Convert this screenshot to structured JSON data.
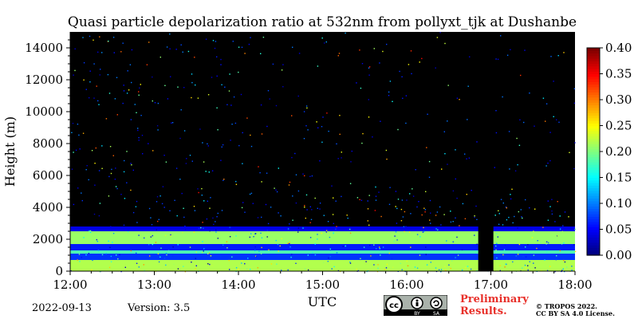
{
  "chart_data": {
    "type": "heatmap",
    "title": "Quasi particle depolarization ratio at 532nm from pollyxt_tjk at Dushanbe",
    "xlabel": "UTC",
    "ylabel": "Height (m)",
    "x_ticks": [
      "12:00",
      "13:00",
      "14:00",
      "15:00",
      "16:00",
      "17:00",
      "18:00"
    ],
    "xlim_hours": [
      12,
      18
    ],
    "ylim": [
      0,
      15000
    ],
    "y_ticks": [
      0,
      2000,
      4000,
      6000,
      8000,
      10000,
      12000,
      14000
    ],
    "colorbar": {
      "range": [
        0.0,
        0.4
      ],
      "ticks": [
        "0.00",
        "0.05",
        "0.10",
        "0.15",
        "0.20",
        "0.25",
        "0.30",
        "0.35",
        "0.40"
      ],
      "colormap": "jet"
    },
    "background_color": "#000000",
    "layers": [
      {
        "bottom": 0,
        "top": 700,
        "value": 0.22
      },
      {
        "bottom": 700,
        "top": 1100,
        "value": 0.07
      },
      {
        "bottom": 1100,
        "top": 1300,
        "value": 0.18
      },
      {
        "bottom": 1300,
        "top": 1700,
        "value": 0.06
      },
      {
        "bottom": 1700,
        "top": 2500,
        "value": 0.21
      },
      {
        "bottom": 2500,
        "top": 2800,
        "value": 0.04
      }
    ],
    "data_gap_hours": [
      16.85,
      17.03
    ]
  },
  "footer": {
    "date": "2022-09-13",
    "version": "Version: 3.5",
    "preliminary": [
      "Preliminary",
      "Results."
    ],
    "copyright": [
      "© TROPOS 2022.",
      "CC BY SA 4.0 License."
    ],
    "cc_badge": [
      "cc",
      "BY",
      "SA"
    ]
  }
}
